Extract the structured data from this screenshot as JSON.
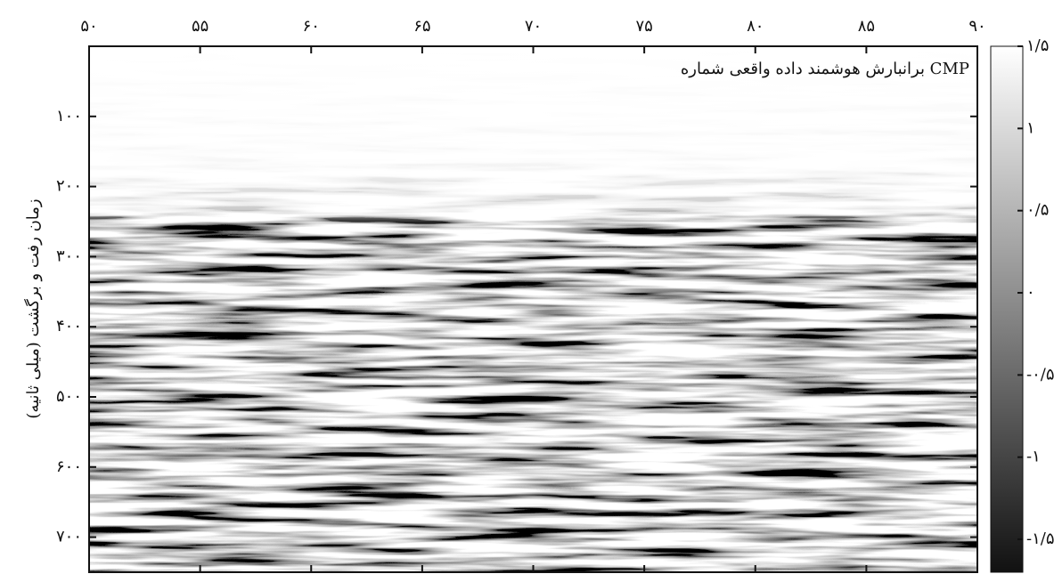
{
  "chart_data": {
    "type": "heatmap",
    "title": "برانبارش هوشمند داده واقعی شماره CMP",
    "y_label": "زمان رفت و برگشت (میلی ثانیه)",
    "xlim": [
      50,
      90
    ],
    "xticks": [
      {
        "value": 50,
        "label": "۵۰"
      },
      {
        "value": 55,
        "label": "۵۵"
      },
      {
        "value": 60,
        "label": "۶۰"
      },
      {
        "value": 65,
        "label": "۶۵"
      },
      {
        "value": 70,
        "label": "۷۰"
      },
      {
        "value": 75,
        "label": "۷۵"
      },
      {
        "value": 80,
        "label": "۸۰"
      },
      {
        "value": 85,
        "label": "۸۵"
      },
      {
        "value": 90,
        "label": "۹۰"
      }
    ],
    "ylim": [
      0,
      750
    ],
    "yticks": [
      {
        "value": 100,
        "label": "۱۰۰"
      },
      {
        "value": 200,
        "label": "۲۰۰"
      },
      {
        "value": 300,
        "label": "۳۰۰"
      },
      {
        "value": 400,
        "label": "۴۰۰"
      },
      {
        "value": 500,
        "label": "۵۰۰"
      },
      {
        "value": 600,
        "label": "۶۰۰"
      },
      {
        "value": 700,
        "label": "۷۰۰"
      }
    ],
    "clim": [
      -1.7,
      1.5
    ],
    "cticks": [
      {
        "value": 1.5,
        "label": "۱/۵"
      },
      {
        "value": 1,
        "label": "۱"
      },
      {
        "value": 0.5,
        "label": "۰/۵"
      },
      {
        "value": 0,
        "label": "۰"
      },
      {
        "value": -0.5,
        "label": "-۰/۵"
      },
      {
        "value": -1,
        "label": "-۱"
      },
      {
        "value": -1.5,
        "label": "-۱/۵"
      }
    ],
    "colormap": [
      "#111111",
      "#ffffff"
    ]
  }
}
